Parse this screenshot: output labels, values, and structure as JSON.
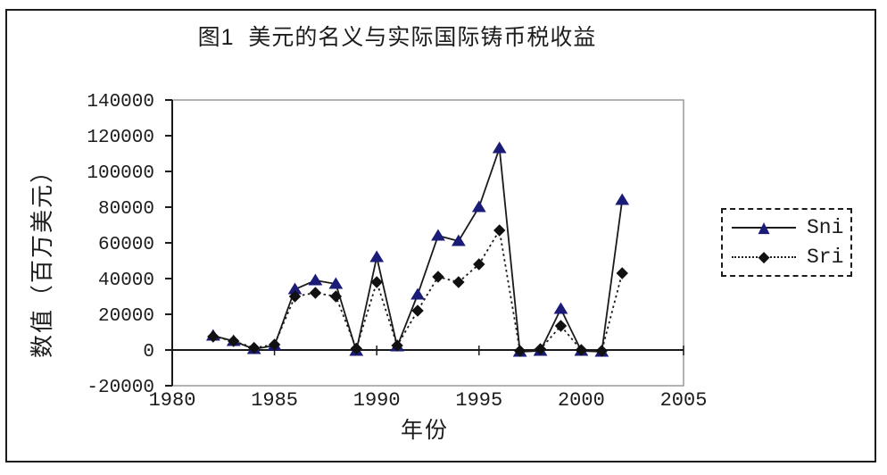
{
  "chart_data": {
    "type": "line",
    "title": "图1  美元的名义与实际国际铸币税收益",
    "xlabel": "年份",
    "ylabel": "数值（百万美元）",
    "xlim": [
      1980,
      2005
    ],
    "ylim": [
      -20000,
      140000
    ],
    "x_ticks": [
      "1980",
      "1985",
      "1990",
      "1995",
      "2000",
      "2005"
    ],
    "y_ticks": [
      140000,
      120000,
      100000,
      80000,
      60000,
      40000,
      20000,
      0,
      -20000
    ],
    "grid": false,
    "legend_position": "right-outside",
    "x": [
      1982,
      1983,
      1984,
      1985,
      1986,
      1987,
      1988,
      1989,
      1990,
      1991,
      1992,
      1993,
      1994,
      1995,
      1996,
      1997,
      1998,
      1999,
      2000,
      2001,
      2002
    ],
    "series": [
      {
        "name": "Sni",
        "marker": "triangle",
        "marker_color": "#1b1b78",
        "line_style": "solid",
        "line_color": "#1a1a1a",
        "values": [
          8000,
          5000,
          500,
          2500,
          34000,
          39000,
          37000,
          -500,
          52000,
          2000,
          31000,
          64000,
          61000,
          80000,
          113000,
          -1000,
          -500,
          23000,
          -500,
          -1000,
          84000
        ]
      },
      {
        "name": "Sri",
        "marker": "diamond",
        "marker_color": "#111111",
        "line_style": "dotted",
        "line_color": "#1a1a1a",
        "values": [
          7500,
          5000,
          1200,
          3000,
          30000,
          32000,
          30000,
          800,
          38000,
          2500,
          22000,
          41000,
          38000,
          48000,
          67000,
          -500,
          500,
          13500,
          0,
          -500,
          43000
        ]
      }
    ]
  },
  "colors": {
    "frame_border": "#1c1c1c",
    "plot_border": "#9a9a9a",
    "axis": "#1a1a1a",
    "text": "#1c1c1c",
    "background": "#ffffff"
  }
}
